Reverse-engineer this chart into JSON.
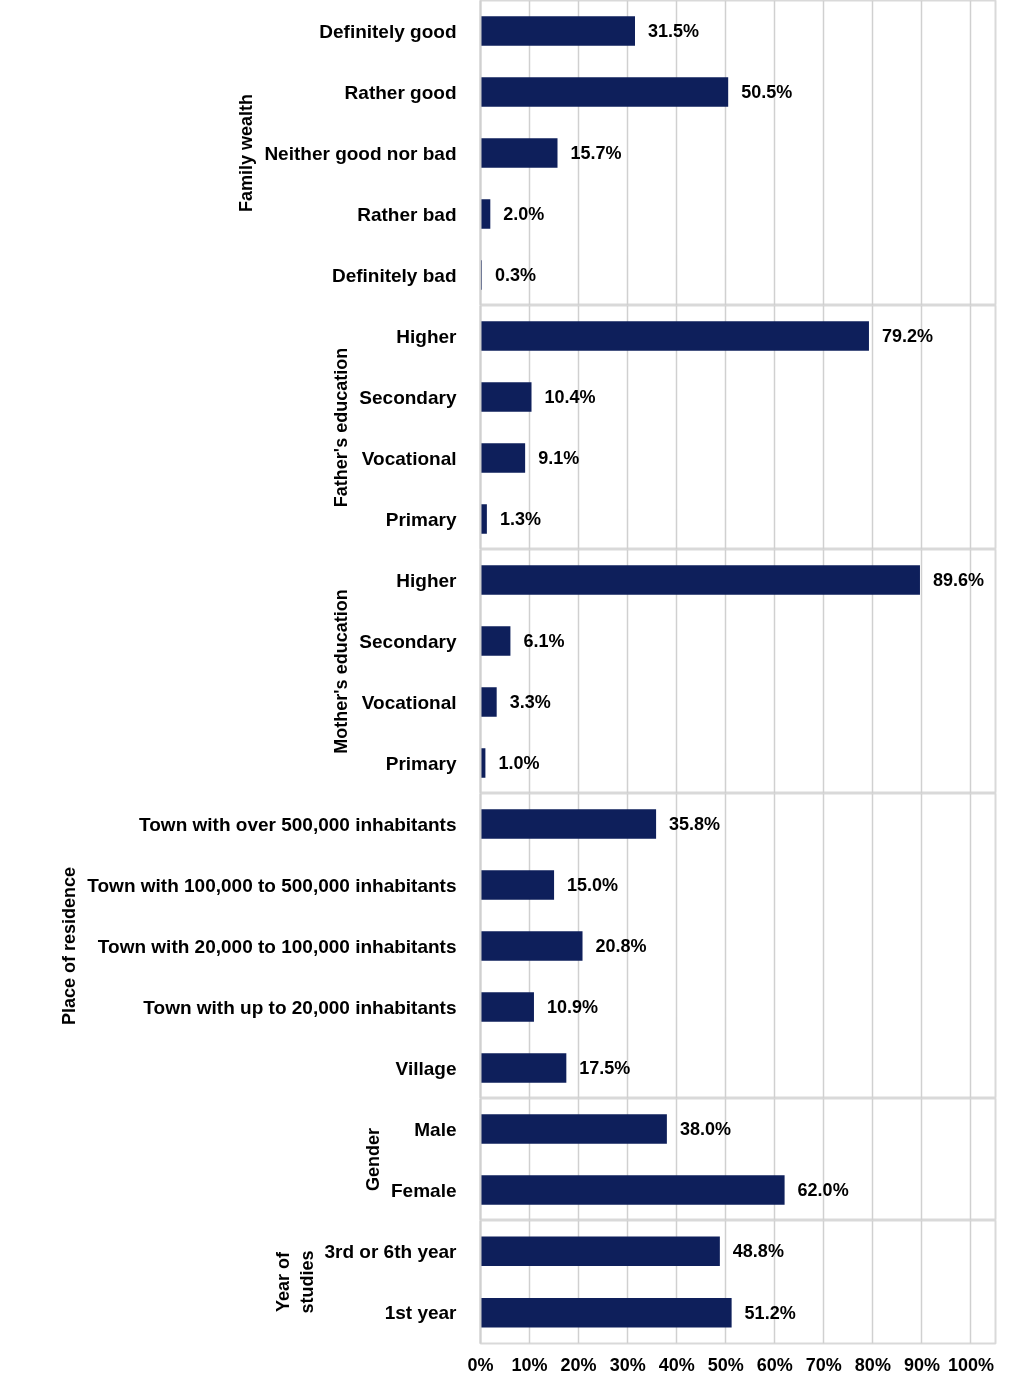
{
  "chart_data": [
    {
      "type": "bar",
      "orientation": "horizontal",
      "ylabel": "Family wealth",
      "categories": [
        "Definitely good",
        "Rather good",
        "Neither good nor bad",
        "Rather bad",
        "Definitely bad"
      ],
      "values": [
        31.5,
        50.5,
        15.7,
        2.0,
        0.3
      ],
      "value_labels": [
        "31.5%",
        "50.5%",
        "15.7%",
        "2.0%",
        "0.3%"
      ],
      "color": "#0e1f5b",
      "xlim": [
        0,
        105
      ],
      "xticks": [
        0,
        10,
        20,
        30,
        40,
        50,
        60,
        70,
        80,
        90,
        100
      ],
      "grid": "x",
      "tick_labels": "y"
    },
    {
      "type": "bar",
      "orientation": "horizontal",
      "ylabel": "Father's education",
      "categories": [
        "Higher",
        "Secondary",
        "Vocational",
        "Primary"
      ],
      "values": [
        79.2,
        10.4,
        9.1,
        1.3
      ],
      "value_labels": [
        "79.2%",
        "10.4%",
        "9.1%",
        "1.3%"
      ],
      "color": "#0e1f5b",
      "xlim": [
        0,
        105
      ],
      "xticks": [
        0,
        10,
        20,
        30,
        40,
        50,
        60,
        70,
        80,
        90,
        100
      ],
      "grid": "x",
      "tick_labels": "y"
    },
    {
      "type": "bar",
      "orientation": "horizontal",
      "ylabel": "Mother's education",
      "categories": [
        "Higher",
        "Secondary",
        "Vocational",
        "Primary"
      ],
      "values": [
        89.6,
        6.1,
        3.3,
        1.0
      ],
      "value_labels": [
        "89.6%",
        "6.1%",
        "3.3%",
        "1.0%"
      ],
      "color": "#0e1f5b",
      "xlim": [
        0,
        105
      ],
      "xticks": [
        0,
        10,
        20,
        30,
        40,
        50,
        60,
        70,
        80,
        90,
        100
      ],
      "grid": "x",
      "tick_labels": "y"
    },
    {
      "type": "bar",
      "orientation": "horizontal",
      "ylabel": "Place of residence",
      "categories": [
        "Town with over 500,000 inhabitants",
        "Town with 100,000 to 500,000 inhabitants",
        "Town with 20,000 to 100,000 inhabitants",
        "Town with up to 20,000 inhabitants",
        "Village"
      ],
      "values": [
        35.8,
        15.0,
        20.8,
        10.9,
        17.5
      ],
      "value_labels": [
        "35.8%",
        "15.0%",
        "20.8%",
        "10.9%",
        "17.5%"
      ],
      "color": "#0e1f5b",
      "xlim": [
        0,
        105
      ],
      "xticks": [
        0,
        10,
        20,
        30,
        40,
        50,
        60,
        70,
        80,
        90,
        100
      ],
      "grid": "x",
      "tick_labels": "y"
    },
    {
      "type": "bar",
      "orientation": "horizontal",
      "ylabel": "Gender",
      "categories": [
        "Male",
        "Female"
      ],
      "values": [
        38.0,
        62.0
      ],
      "value_labels": [
        "38.0%",
        "62.0%"
      ],
      "color": "#0e1f5b",
      "xlim": [
        0,
        105
      ],
      "xticks": [
        0,
        10,
        20,
        30,
        40,
        50,
        60,
        70,
        80,
        90,
        100
      ],
      "grid": "x",
      "tick_labels": "y"
    },
    {
      "type": "bar",
      "orientation": "horizontal",
      "ylabel": "Year of studies",
      "categories": [
        "3rd or 6th year",
        "1st year"
      ],
      "values": [
        48.8,
        51.2
      ],
      "value_labels": [
        "48.8%",
        "51.2%"
      ],
      "color": "#0e1f5b",
      "xlim": [
        0,
        105
      ],
      "xticks": [
        {
          "value": 0,
          "label": "0%"
        },
        {
          "value": 10,
          "label": "10%"
        },
        {
          "value": 20,
          "label": "20%"
        },
        {
          "value": 30,
          "label": "30%"
        },
        {
          "value": 40,
          "label": "40%"
        },
        {
          "value": 50,
          "label": "50%"
        },
        {
          "value": 60,
          "label": "60%"
        },
        {
          "value": 70,
          "label": "70%"
        },
        {
          "value": 80,
          "label": "80%"
        },
        {
          "value": 90,
          "label": "90%"
        },
        {
          "value": 100,
          "label": "100%"
        }
      ],
      "grid": "x"
    }
  ]
}
